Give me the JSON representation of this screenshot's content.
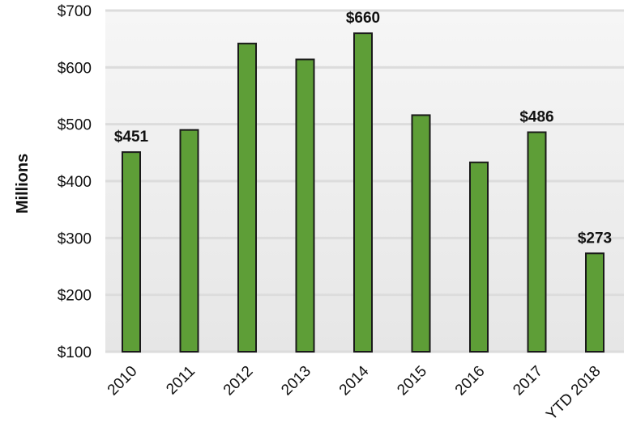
{
  "chart_data": {
    "type": "bar",
    "categories": [
      "2010",
      "2011",
      "2012",
      "2013",
      "2014",
      "2015",
      "2016",
      "2017",
      "YTD 2018"
    ],
    "values": [
      451,
      490,
      642,
      614,
      660,
      516,
      433,
      486,
      273
    ],
    "data_labels": [
      "$451",
      "",
      "",
      "",
      "$660",
      "",
      "",
      "$486",
      "$273"
    ],
    "ylabel": "Millions",
    "ylim": [
      100,
      700
    ],
    "yticks": [
      100,
      200,
      300,
      400,
      500,
      600,
      700
    ],
    "ytick_labels": [
      "$100",
      "$200",
      "$300",
      "$400",
      "$500",
      "$600",
      "$700"
    ],
    "grid": true,
    "colors": {
      "bar": "#5e9e37",
      "bar_border": "#1a1a1a",
      "grid": "#dcdcdc",
      "plot_bg": "#efefef"
    }
  }
}
